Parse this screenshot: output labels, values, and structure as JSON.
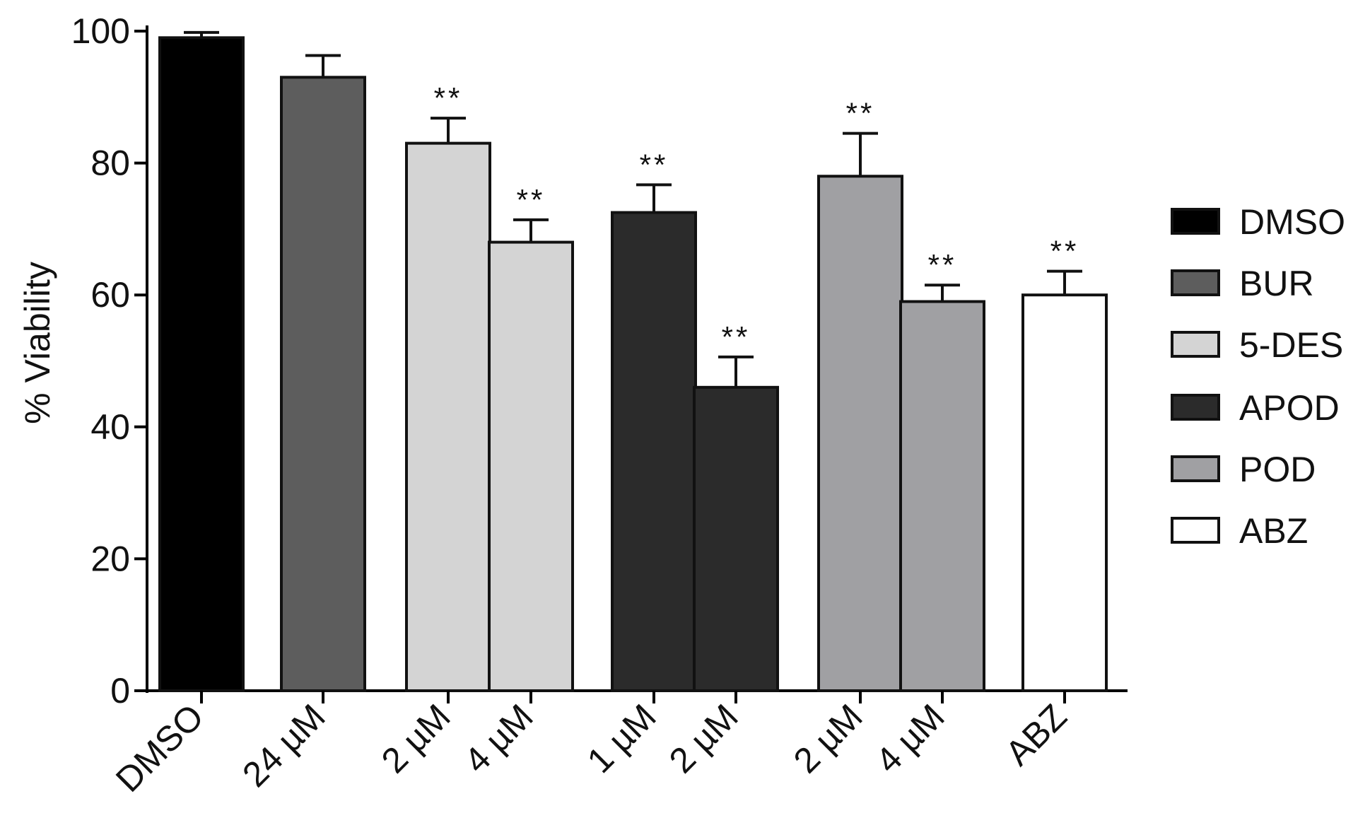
{
  "chart_data": {
    "type": "bar",
    "title": "",
    "xlabel": "",
    "ylabel": "% Viability",
    "ylim": [
      0,
      100
    ],
    "yticks": [
      "0",
      "20",
      "40",
      "60",
      "80",
      "100"
    ],
    "grid": false,
    "legend_position": "right",
    "categories": [
      "DMSO",
      "24 µM",
      "2 µM",
      "4 µM",
      "1 µM",
      "2 µM",
      "2 µM",
      "4 µM",
      "ABZ"
    ],
    "values": [
      99,
      93,
      83,
      68,
      72.5,
      46,
      78,
      59,
      60
    ],
    "errors": [
      0.8,
      3.3,
      3.8,
      3.4,
      4.2,
      4.6,
      6.5,
      2.5,
      3.6
    ],
    "groups": [
      "DMSO",
      "BUR",
      "5-DES",
      "5-DES",
      "APOD",
      "APOD",
      "POD",
      "POD",
      "ABZ"
    ],
    "annotations": [
      "",
      "",
      "**",
      "**",
      "**",
      "**",
      "**",
      "**",
      "**"
    ],
    "legend": [
      {
        "name": "DMSO",
        "color": "#000000"
      },
      {
        "name": "BUR",
        "color": "#5d5d5d"
      },
      {
        "name": "5-DES",
        "color": "#d4d4d4"
      },
      {
        "name": "APOD",
        "color": "#2b2b2b"
      },
      {
        "name": "POD",
        "color": "#a0a0a3"
      },
      {
        "name": "ABZ",
        "color": "#ffffff"
      }
    ]
  }
}
